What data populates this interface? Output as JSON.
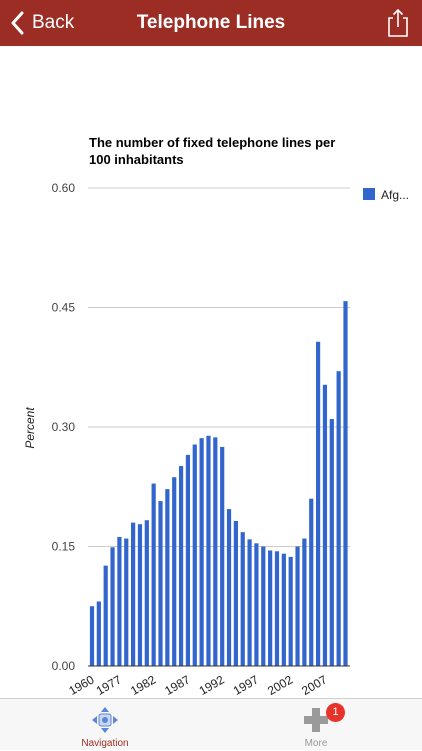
{
  "header": {
    "back_label": "Back",
    "title": "Telephone Lines"
  },
  "tabs": {
    "navigation_label": "Navigation",
    "more_label": "More",
    "more_badge": "1"
  },
  "colors": {
    "header": "#9b2d25",
    "bar": "#3366cc",
    "active_tab": "#9b2d25",
    "badge": "#e8332a"
  },
  "chart_data": {
    "type": "bar",
    "title": "The number of fixed telephone lines per 100 inhabitants",
    "title_lines": [
      "The number of fixed telephone lines per",
      "100 inhabitants"
    ],
    "ylabel": "Percent",
    "xlabel": "",
    "ylim": [
      0,
      0.6
    ],
    "yticks": [
      "0.00",
      "0.15",
      "0.30",
      "0.45",
      "0.60"
    ],
    "xtick_labels": [
      "1960",
      "1977",
      "1982",
      "1987",
      "1992",
      "1997",
      "2002",
      "2007"
    ],
    "grid": true,
    "legend_position": "right",
    "series": [
      {
        "name": "Afg...",
        "values": [
          0.075,
          0.081,
          0.126,
          0.149,
          0.162,
          0.16,
          0.18,
          0.178,
          0.183,
          0.229,
          0.207,
          0.222,
          0.237,
          0.251,
          0.265,
          0.278,
          0.286,
          0.289,
          0.287,
          0.275,
          0.197,
          0.182,
          0.168,
          0.159,
          0.154,
          0.15,
          0.145,
          0.144,
          0.141,
          0.137,
          0.15,
          0.16,
          0.21,
          0.407,
          0.353,
          0.31,
          0.37,
          0.458
        ]
      }
    ]
  }
}
